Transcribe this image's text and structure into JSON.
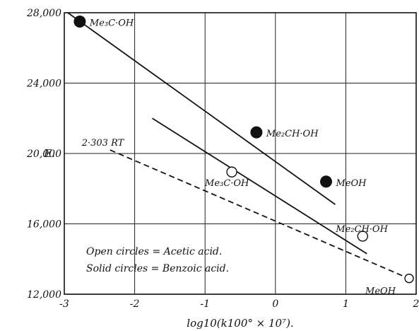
{
  "chart_data": {
    "type": "scatter",
    "xlabel": "log10(k100° × 10⁷).",
    "ylabel": "E.",
    "xlim": [
      -3,
      2
    ],
    "ylim": [
      12000,
      28000
    ],
    "grid": true,
    "x_ticks": [
      -3,
      -2,
      -1,
      0,
      1,
      2
    ],
    "x_tick_labels": [
      "-3",
      "-2",
      "-1",
      "0",
      "1",
      "2"
    ],
    "y_ticks": [
      12000,
      16000,
      20000,
      24000,
      28000
    ],
    "y_tick_labels": [
      "12,000",
      "16,000",
      "20,000",
      "24,000",
      "28,000"
    ],
    "series": [
      {
        "name": "Benzoic acid",
        "marker": "solid-circle",
        "points": [
          {
            "x": -2.78,
            "y": 27500,
            "label": "Me₃C·OH"
          },
          {
            "x": -0.27,
            "y": 21200,
            "label": "Me₂CH·OH"
          },
          {
            "x": 0.72,
            "y": 18400,
            "label": "MeOH"
          }
        ]
      },
      {
        "name": "Acetic acid",
        "marker": "open-circle",
        "points": [
          {
            "x": -0.62,
            "y": 18950,
            "label": "Me₃C·OH"
          },
          {
            "x": 1.24,
            "y": 15300,
            "label": "Me₂CH·OH"
          },
          {
            "x": 1.9,
            "y": 12900,
            "label": "MeOH"
          }
        ]
      }
    ],
    "lines": [
      {
        "id": "benzoic-fit",
        "style": "solid",
        "x": [
          -2.95,
          0.85
        ],
        "y": [
          28000,
          17100
        ]
      },
      {
        "id": "acetic-fit",
        "style": "solid",
        "x": [
          -1.75,
          1.3
        ],
        "y": [
          22000,
          14300
        ]
      },
      {
        "id": "rt-line",
        "style": "dashed",
        "label": "2·303 RT",
        "x": [
          -2.35,
          1.95
        ],
        "y": [
          20200,
          12800
        ]
      }
    ],
    "legend": [
      "Open circles = Acetic acid.",
      "Solid circles = Benzoic acid."
    ],
    "legend_position": "bottom-left"
  }
}
